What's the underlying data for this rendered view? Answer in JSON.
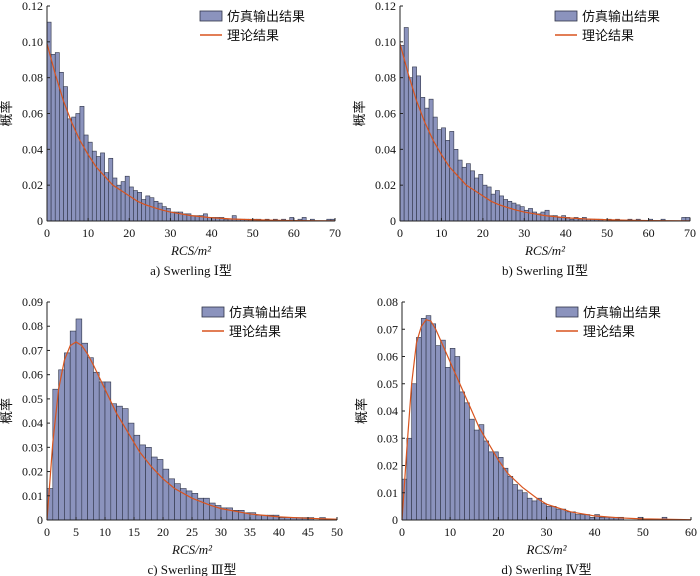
{
  "colors": {
    "bar_fill": "#8b93bd",
    "bar_stroke": "#2f3447",
    "curve": "#d9541e",
    "axis": "#222222"
  },
  "chart_data": [
    {
      "type": "bar",
      "caption": "a) Swerling Ⅰ型",
      "xlabel": "RCS/m²",
      "ylabel": "概率",
      "xlim": [
        0,
        70
      ],
      "ylim": [
        0,
        0.12
      ],
      "xticks": [
        0,
        10,
        20,
        30,
        40,
        50,
        60,
        70
      ],
      "yticks": [
        0,
        0.02,
        0.04,
        0.06,
        0.08,
        0.1,
        0.12
      ],
      "ytick_labels": [
        "0",
        "0.02",
        "0.04",
        "0.06",
        "0.08",
        "0.10",
        "0.12"
      ],
      "bin_width": 1,
      "legend": "top-right",
      "series": [
        {
          "name": "仿真输出结果",
          "kind": "histogram",
          "x": [
            0.5,
            1.5,
            2.5,
            3.5,
            4.5,
            5.5,
            6.5,
            7.5,
            8.5,
            9.5,
            10.5,
            11.5,
            12.5,
            13.5,
            14.5,
            15.5,
            16.5,
            17.5,
            18.5,
            19.5,
            20.5,
            21.5,
            22.5,
            23.5,
            24.5,
            25.5,
            26.5,
            27.5,
            28.5,
            29.5,
            30.5,
            31.5,
            32.5,
            33.5,
            34.5,
            35.5,
            36.5,
            37.5,
            38.5,
            39.5,
            40.5,
            41.5,
            42.5,
            43.5,
            44.5,
            45.5,
            46.5,
            47.5,
            48.5,
            49.5,
            50.5,
            51.5,
            52.5,
            53.5,
            54.5,
            55.5,
            56.5,
            57.5,
            58.5,
            59.5,
            60.5,
            61.5,
            62.5,
            63.5,
            64.5,
            65.5,
            66.5,
            67.5,
            68.5,
            69.5
          ],
          "values": [
            0.111,
            0.093,
            0.094,
            0.083,
            0.075,
            0.057,
            0.058,
            0.06,
            0.064,
            0.048,
            0.044,
            0.039,
            0.036,
            0.038,
            0.027,
            0.035,
            0.024,
            0.02,
            0.022,
            0.025,
            0.019,
            0.017,
            0.016,
            0.012,
            0.014,
            0.013,
            0.011,
            0.01,
            0.008,
            0.007,
            0.005,
            0.005,
            0.005,
            0.004,
            0.004,
            0.003,
            0.003,
            0.003,
            0.004,
            0.002,
            0.002,
            0.002,
            0.002,
            0.001,
            0.001,
            0.003,
            0.001,
            0.001,
            0.001,
            0.001,
            0.001,
            0.001,
            0.0,
            0.001,
            0.0,
            0.001,
            0.0,
            0.001,
            0.0,
            0.002,
            0.0,
            0.001,
            0.002,
            0.0,
            0.001,
            0.0,
            0.0,
            0.0,
            0.001,
            0.001
          ]
        },
        {
          "name": "理论结果",
          "kind": "curve",
          "x": [
            0,
            2,
            4,
            6,
            8,
            10,
            12,
            14,
            16,
            18,
            20,
            22,
            24,
            26,
            28,
            30,
            35,
            40,
            45,
            50,
            55,
            60,
            65,
            70
          ],
          "values": [
            0.099,
            0.082,
            0.067,
            0.055,
            0.045,
            0.037,
            0.03,
            0.025,
            0.02,
            0.017,
            0.014,
            0.011,
            0.009,
            0.0075,
            0.0061,
            0.005,
            0.003,
            0.0018,
            0.0011,
            0.0007,
            0.0004,
            0.00025,
            0.00015,
            0.0001
          ]
        }
      ]
    },
    {
      "type": "bar",
      "caption": "b) Swerling Ⅱ型",
      "xlabel": "RCS/m²",
      "ylabel": "概率",
      "xlim": [
        0,
        70
      ],
      "ylim": [
        0,
        0.12
      ],
      "xticks": [
        0,
        10,
        20,
        30,
        40,
        50,
        60,
        70
      ],
      "yticks": [
        0,
        0.02,
        0.04,
        0.06,
        0.08,
        0.1,
        0.12
      ],
      "ytick_labels": [
        "0",
        "0.02",
        "0.04",
        "0.06",
        "0.08",
        "0.10",
        "0.12"
      ],
      "bin_width": 1,
      "legend": "top-right",
      "series": [
        {
          "name": "仿真输出结果",
          "kind": "histogram",
          "x": [
            0.5,
            1.5,
            2.5,
            3.5,
            4.5,
            5.5,
            6.5,
            7.5,
            8.5,
            9.5,
            10.5,
            11.5,
            12.5,
            13.5,
            14.5,
            15.5,
            16.5,
            17.5,
            18.5,
            19.5,
            20.5,
            21.5,
            22.5,
            23.5,
            24.5,
            25.5,
            26.5,
            27.5,
            28.5,
            29.5,
            30.5,
            31.5,
            32.5,
            33.5,
            34.5,
            35.5,
            36.5,
            37.5,
            38.5,
            39.5,
            40.5,
            41.5,
            42.5,
            43.5,
            44.5,
            45.5,
            46.5,
            47.5,
            48.5,
            49.5,
            50.5,
            51.5,
            52.5,
            53.5,
            54.5,
            55.5,
            56.5,
            57.5,
            58.5,
            59.5,
            60.5,
            61.5,
            62.5,
            63.5,
            64.5,
            65.5,
            66.5,
            67.5,
            68.5,
            69.5
          ],
          "values": [
            0.098,
            0.108,
            0.08,
            0.086,
            0.081,
            0.069,
            0.063,
            0.068,
            0.058,
            0.051,
            0.052,
            0.045,
            0.05,
            0.04,
            0.034,
            0.03,
            0.032,
            0.028,
            0.024,
            0.026,
            0.02,
            0.019,
            0.015,
            0.017,
            0.014,
            0.012,
            0.011,
            0.01,
            0.009,
            0.008,
            0.006,
            0.007,
            0.005,
            0.004,
            0.005,
            0.006,
            0.003,
            0.003,
            0.002,
            0.003,
            0.002,
            0.001,
            0.002,
            0.001,
            0.002,
            0.001,
            0.001,
            0.001,
            0.001,
            0.0,
            0.001,
            0.0,
            0.001,
            0.0,
            0.0,
            0.001,
            0.0,
            0.001,
            0.0,
            0.0,
            0.001,
            0.0,
            0.0,
            0.001,
            0.0,
            0.0,
            0.0,
            0.0,
            0.002,
            0.002
          ]
        },
        {
          "name": "理论结果",
          "kind": "curve",
          "x": [
            0,
            2,
            4,
            6,
            8,
            10,
            12,
            14,
            16,
            18,
            20,
            22,
            24,
            26,
            28,
            30,
            35,
            40,
            45,
            50,
            55,
            60,
            65,
            70
          ],
          "values": [
            0.099,
            0.082,
            0.067,
            0.055,
            0.045,
            0.037,
            0.03,
            0.025,
            0.02,
            0.017,
            0.014,
            0.011,
            0.009,
            0.0075,
            0.0061,
            0.005,
            0.003,
            0.0018,
            0.0011,
            0.0007,
            0.0004,
            0.00025,
            0.00015,
            0.0001
          ]
        }
      ]
    },
    {
      "type": "bar",
      "caption": "c) Swerling Ⅲ型",
      "xlabel": "RCS/m²",
      "ylabel": "概率",
      "xlim": [
        0,
        50
      ],
      "ylim": [
        0,
        0.09
      ],
      "xticks": [
        0,
        5,
        10,
        15,
        20,
        25,
        30,
        35,
        40,
        45,
        50
      ],
      "yticks": [
        0,
        0.01,
        0.02,
        0.03,
        0.04,
        0.05,
        0.06,
        0.07,
        0.08,
        0.09
      ],
      "ytick_labels": [
        "0",
        "0.01",
        "0.02",
        "0.03",
        "0.04",
        "0.05",
        "0.06",
        "0.07",
        "0.08",
        "0.09"
      ],
      "bin_width": 1,
      "legend": "top-right",
      "series": [
        {
          "name": "仿真输出结果",
          "kind": "histogram",
          "x": [
            0.5,
            1.5,
            2.5,
            3.5,
            4.5,
            5.5,
            6.5,
            7.5,
            8.5,
            9.5,
            10.5,
            11.5,
            12.5,
            13.5,
            14.5,
            15.5,
            16.5,
            17.5,
            18.5,
            19.5,
            20.5,
            21.5,
            22.5,
            23.5,
            24.5,
            25.5,
            26.5,
            27.5,
            28.5,
            29.5,
            30.5,
            31.5,
            32.5,
            33.5,
            34.5,
            35.5,
            36.5,
            37.5,
            38.5,
            39.5,
            40.5,
            41.5,
            42.5,
            43.5,
            44.5,
            45.5,
            46.5,
            47.5
          ],
          "values": [
            0.013,
            0.054,
            0.062,
            0.069,
            0.078,
            0.083,
            0.073,
            0.067,
            0.061,
            0.057,
            0.057,
            0.048,
            0.047,
            0.046,
            0.04,
            0.035,
            0.031,
            0.03,
            0.026,
            0.025,
            0.021,
            0.017,
            0.015,
            0.013,
            0.012,
            0.011,
            0.009,
            0.009,
            0.007,
            0.006,
            0.005,
            0.005,
            0.004,
            0.004,
            0.003,
            0.003,
            0.002,
            0.002,
            0.002,
            0.002,
            0.001,
            0.001,
            0.001,
            0.001,
            0.001,
            0.001,
            0.0,
            0.001
          ]
        },
        {
          "name": "理论结果",
          "kind": "curve",
          "x": [
            0,
            1,
            2,
            3,
            4,
            5,
            6,
            7,
            8,
            10,
            12,
            14,
            16,
            18,
            20,
            22,
            25,
            28,
            30,
            35,
            40,
            45,
            50
          ],
          "values": [
            0,
            0.032,
            0.054,
            0.066,
            0.072,
            0.0735,
            0.072,
            0.0685,
            0.064,
            0.054,
            0.044,
            0.036,
            0.028,
            0.022,
            0.017,
            0.013,
            0.009,
            0.0062,
            0.0047,
            0.0025,
            0.0013,
            0.0007,
            0.0003
          ]
        }
      ]
    },
    {
      "type": "bar",
      "caption": "d) Swerling Ⅳ型",
      "xlabel": "RCS/m²",
      "ylabel": "概率",
      "xlim": [
        0,
        60
      ],
      "ylim": [
        0,
        0.08
      ],
      "xticks": [
        0,
        10,
        20,
        30,
        40,
        50,
        60
      ],
      "yticks": [
        0,
        0.01,
        0.02,
        0.03,
        0.04,
        0.05,
        0.06,
        0.07,
        0.08
      ],
      "ytick_labels": [
        "0",
        "0.01",
        "0.02",
        "0.03",
        "0.04",
        "0.05",
        "0.06",
        "0.07",
        "0.08"
      ],
      "bin_width": 1,
      "legend": "top-right",
      "series": [
        {
          "name": "仿真输出结果",
          "kind": "histogram",
          "x": [
            0.5,
            1.5,
            2.5,
            3.5,
            4.5,
            5.5,
            6.5,
            7.5,
            8.5,
            9.5,
            10.5,
            11.5,
            12.5,
            13.5,
            14.5,
            15.5,
            16.5,
            17.5,
            18.5,
            19.5,
            20.5,
            21.5,
            22.5,
            23.5,
            24.5,
            25.5,
            26.5,
            27.5,
            28.5,
            29.5,
            30.5,
            31.5,
            32.5,
            33.5,
            34.5,
            35.5,
            36.5,
            37.5,
            38.5,
            39.5,
            40.5,
            41.5,
            42.5,
            43.5,
            44.5,
            45.5,
            46.5,
            47.5,
            48.5,
            49.5,
            50.5,
            51.5,
            52.5,
            53.5,
            54.5
          ],
          "values": [
            0.015,
            0.03,
            0.05,
            0.067,
            0.074,
            0.075,
            0.072,
            0.064,
            0.066,
            0.056,
            0.063,
            0.06,
            0.047,
            0.043,
            0.037,
            0.033,
            0.035,
            0.029,
            0.025,
            0.025,
            0.023,
            0.019,
            0.016,
            0.013,
            0.011,
            0.01,
            0.008,
            0.007,
            0.008,
            0.006,
            0.005,
            0.005,
            0.004,
            0.004,
            0.003,
            0.003,
            0.002,
            0.002,
            0.002,
            0.001,
            0.002,
            0.001,
            0.001,
            0.001,
            0.001,
            0.001,
            0.0,
            0.0,
            0.0,
            0.001,
            0.0,
            0.0,
            0.0,
            0.0,
            0.001
          ]
        },
        {
          "name": "理论结果",
          "kind": "curve",
          "x": [
            0,
            1,
            2,
            3,
            4,
            5,
            6,
            7,
            8,
            9,
            10,
            12,
            14,
            16,
            18,
            20,
            22,
            25,
            28,
            30,
            35,
            40,
            45,
            50,
            60
          ],
          "values": [
            0,
            0.026,
            0.05,
            0.065,
            0.071,
            0.0735,
            0.073,
            0.07,
            0.066,
            0.062,
            0.058,
            0.05,
            0.042,
            0.034,
            0.028,
            0.022,
            0.017,
            0.012,
            0.008,
            0.0058,
            0.003,
            0.0015,
            0.0008,
            0.0004,
            0.0001
          ]
        }
      ]
    }
  ]
}
